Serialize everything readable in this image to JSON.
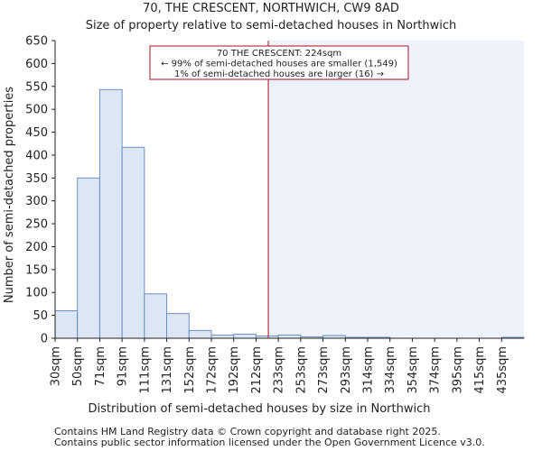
{
  "title_line1": "70, THE CRESCENT, NORTHWICH, CW9 8AD",
  "title_line2": "Size of property relative to semi-detached houses in Northwich",
  "footer_line1": "Contains HM Land Registry data © Crown copyright and database right 2025.",
  "footer_line2": "Contains public sector information licensed under the Open Government Licence v3.0.",
  "colors": {
    "bar_fill": "#dce6f4",
    "bar_stroke": "#6b8fc4",
    "highlight_region": "#eef2fb",
    "marker_line": "#aa1122",
    "annotation_border": "#aa1122",
    "axis": "#222222"
  },
  "chart_data": {
    "type": "bar",
    "title": "70, THE CRESCENT, NORTHWICH, CW9 8AD\nSize of property relative to semi-detached houses in Northwich",
    "xlabel": "Distribution of semi-detached houses by size in Northwich",
    "ylabel": "Number of semi-detached properties",
    "ylim": [
      0,
      650
    ],
    "yticks": [
      0,
      50,
      100,
      150,
      200,
      250,
      300,
      350,
      400,
      450,
      500,
      550,
      600,
      650
    ],
    "categories": [
      "30sqm",
      "50sqm",
      "71sqm",
      "91sqm",
      "111sqm",
      "131sqm",
      "152sqm",
      "172sqm",
      "192sqm",
      "212sqm",
      "233sqm",
      "253sqm",
      "273sqm",
      "293sqm",
      "314sqm",
      "334sqm",
      "354sqm",
      "374sqm",
      "395sqm",
      "415sqm",
      "435sqm"
    ],
    "values": [
      60,
      350,
      543,
      417,
      97,
      54,
      17,
      7,
      9,
      5,
      7,
      3,
      6,
      2,
      2,
      0,
      0,
      0,
      0,
      0,
      2
    ],
    "marker": {
      "value_sqm": 224,
      "bin_position": 9.55,
      "label_lines": [
        "70 THE CRESCENT: 224sqm",
        "← 99% of semi-detached houses are smaller (1,549)",
        "1% of semi-detached houses are larger (16) →"
      ]
    },
    "grid": false,
    "legend": "none"
  }
}
